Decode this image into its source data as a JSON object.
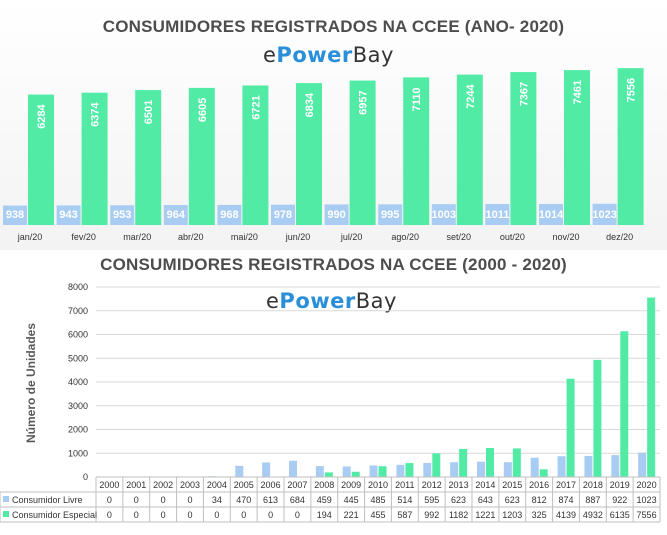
{
  "chart_data": [
    {
      "type": "bar",
      "title": "CONSUMIDORES REGISTRADOS NA CCEE (ANO- 2020)",
      "categories": [
        "jan/20",
        "fev/20",
        "mar/20",
        "abr/20",
        "mai/20",
        "jun/20",
        "jul/20",
        "ago/20",
        "set/20",
        "out/20",
        "nov/20",
        "dez/20"
      ],
      "series": [
        {
          "name": "Consumidor Livre",
          "values": [
            938,
            943,
            953,
            964,
            968,
            978,
            990,
            995,
            1003,
            1011,
            1014,
            1023
          ],
          "color": "#a9cdf2"
        },
        {
          "name": "Consumidor Especial",
          "values": [
            6284,
            6374,
            6501,
            6605,
            6721,
            6834,
            6957,
            7110,
            7244,
            7367,
            7461,
            7556
          ],
          "color": "#52eba6"
        }
      ],
      "ylim": [
        0,
        7900
      ],
      "grid": false
    },
    {
      "type": "bar",
      "title": "CONSUMIDORES REGISTRADOS NA CCEE (2000 - 2020)",
      "ylabel": "Número de Unidades",
      "categories": [
        "2000",
        "2001",
        "2002",
        "2003",
        "2004",
        "2005",
        "2006",
        "2007",
        "2008",
        "2009",
        "2010",
        "2011",
        "2012",
        "2013",
        "2014",
        "2015",
        "2016",
        "2017",
        "2018",
        "2019",
        "2020"
      ],
      "series": [
        {
          "name": "Consumidor Livre",
          "values": [
            0,
            0,
            0,
            0,
            34,
            470,
            613,
            684,
            459,
            445,
            485,
            514,
            595,
            623,
            643,
            623,
            812,
            874,
            887,
            922,
            1023
          ],
          "color": "#a9cdf2"
        },
        {
          "name": "Consumidor Especial",
          "values": [
            0,
            0,
            0,
            0,
            0,
            0,
            0,
            0,
            194,
            221,
            455,
            587,
            992,
            1182,
            1221,
            1203,
            325,
            4139,
            4932,
            6135,
            7556
          ],
          "color": "#52eba6"
        }
      ],
      "yticks": [
        0,
        1000,
        2000,
        3000,
        4000,
        5000,
        6000,
        7000,
        8000
      ],
      "ylim": [
        0,
        8000
      ],
      "grid": true
    }
  ],
  "logo": {
    "prefix": "e",
    "brand": "Power",
    "suffix": "Bay"
  }
}
